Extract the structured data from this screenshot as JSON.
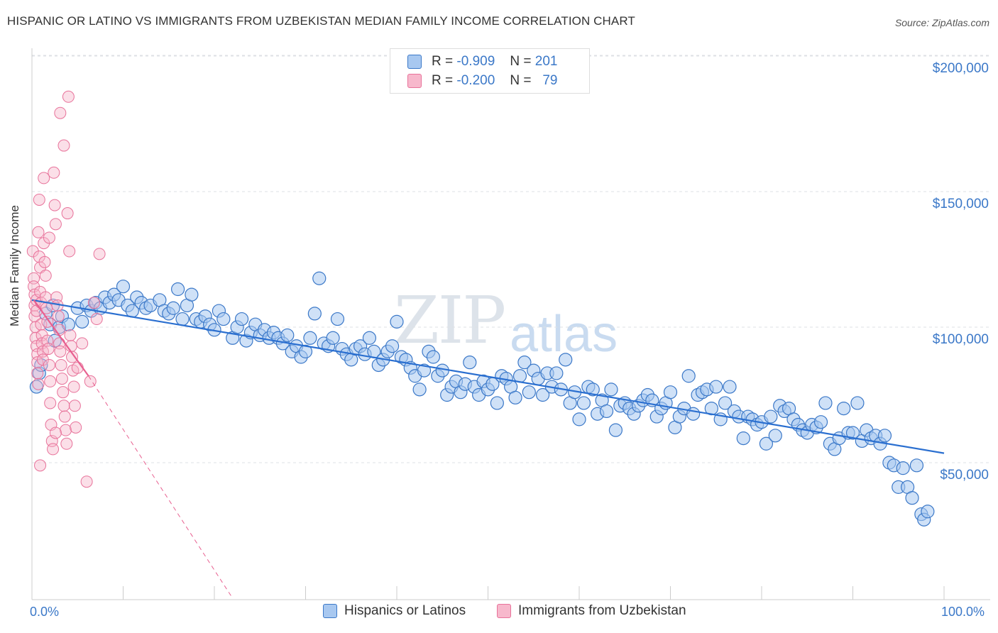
{
  "header": {
    "title": "HISPANIC OR LATINO VS IMMIGRANTS FROM UZBEKISTAN MEDIAN FAMILY INCOME CORRELATION CHART",
    "source": "Source: ZipAtlas.com"
  },
  "watermark": {
    "zip": "ZIP",
    "atlas": "atlas"
  },
  "legend": {
    "rows": [
      {
        "r_label": "R =",
        "r_value": "-0.909",
        "n_label": "N =",
        "n_value": "201",
        "color": "#a8c8f0"
      },
      {
        "r_label": "R =",
        "r_value": "-0.200",
        "n_label": "N =",
        "n_value": "79",
        "color": "#f7b8cc"
      }
    ]
  },
  "colors": {
    "blue_fill": "#a8c8f0",
    "blue_stroke": "#3b78c8",
    "blue_line": "#2a6fd0",
    "pink_fill": "#f7b8cc",
    "pink_stroke": "#e8729a",
    "pink_line": "#e86090",
    "grid": "#dde0e4",
    "axis": "#ccc"
  },
  "chart_data": {
    "type": "scatter",
    "title": "HISPANIC OR LATINO VS IMMIGRANTS FROM UZBEKISTAN MEDIAN FAMILY INCOME CORRELATION CHART",
    "xlabel": "",
    "ylabel": "Median Family Income",
    "xlim": [
      0,
      100
    ],
    "ylim": [
      0,
      205000
    ],
    "x_tick_labels": [
      "0.0%",
      "100.0%"
    ],
    "y_ticks": [
      50000,
      100000,
      150000,
      200000
    ],
    "y_tick_labels": [
      "$50,000",
      "$100,000",
      "$150,000",
      "$200,000"
    ],
    "series": [
      {
        "name": "Hispanics or Latinos",
        "trend": {
          "x": [
            0,
            100
          ],
          "y": [
            110000,
            53500
          ]
        },
        "points": [
          [
            0.5,
            78000
          ],
          [
            0.8,
            83000
          ],
          [
            1.0,
            86000
          ],
          [
            1.5,
            105000
          ],
          [
            2.0,
            101000
          ],
          [
            2.3,
            108000
          ],
          [
            2.5,
            95000
          ],
          [
            3.0,
            100000
          ],
          [
            3.3,
            104000
          ],
          [
            4.0,
            101000
          ],
          [
            5.0,
            107000
          ],
          [
            5.5,
            102000
          ],
          [
            6.0,
            108000
          ],
          [
            6.5,
            106000
          ],
          [
            7.0,
            109000
          ],
          [
            7.5,
            107000
          ],
          [
            8.0,
            111000
          ],
          [
            8.5,
            109000
          ],
          [
            9.0,
            112000
          ],
          [
            9.5,
            110000
          ],
          [
            10.0,
            115000
          ],
          [
            10.5,
            108000
          ],
          [
            11.0,
            106000
          ],
          [
            11.5,
            111000
          ],
          [
            12.0,
            109000
          ],
          [
            12.5,
            107000
          ],
          [
            13.0,
            108000
          ],
          [
            14.0,
            110000
          ],
          [
            14.5,
            106000
          ],
          [
            15.0,
            105000
          ],
          [
            15.5,
            107000
          ],
          [
            16.0,
            114000
          ],
          [
            16.5,
            103000
          ],
          [
            17.0,
            108000
          ],
          [
            17.5,
            112000
          ],
          [
            18.0,
            103000
          ],
          [
            18.5,
            102000
          ],
          [
            19.0,
            104000
          ],
          [
            19.5,
            101000
          ],
          [
            20.0,
            99000
          ],
          [
            20.5,
            106000
          ],
          [
            21.0,
            103000
          ],
          [
            22.0,
            96000
          ],
          [
            22.5,
            100000
          ],
          [
            23.0,
            103000
          ],
          [
            23.5,
            95000
          ],
          [
            24.0,
            98000
          ],
          [
            24.5,
            101000
          ],
          [
            25.0,
            97000
          ],
          [
            25.5,
            99000
          ],
          [
            26.0,
            96000
          ],
          [
            26.5,
            98000
          ],
          [
            27.0,
            96000
          ],
          [
            27.5,
            94000
          ],
          [
            28.0,
            97000
          ],
          [
            28.5,
            91000
          ],
          [
            29.0,
            93000
          ],
          [
            29.5,
            89000
          ],
          [
            30.0,
            91000
          ],
          [
            30.5,
            96000
          ],
          [
            31.0,
            105000
          ],
          [
            31.5,
            118000
          ],
          [
            32.0,
            94000
          ],
          [
            32.5,
            93000
          ],
          [
            33.0,
            96000
          ],
          [
            33.5,
            103000
          ],
          [
            34.0,
            92000
          ],
          [
            34.5,
            90000
          ],
          [
            35.0,
            88000
          ],
          [
            35.5,
            92000
          ],
          [
            36.0,
            93000
          ],
          [
            36.5,
            90000
          ],
          [
            37.0,
            96000
          ],
          [
            37.5,
            91000
          ],
          [
            38.0,
            86000
          ],
          [
            38.5,
            88000
          ],
          [
            39.0,
            91000
          ],
          [
            39.5,
            93000
          ],
          [
            40.0,
            102000
          ],
          [
            40.5,
            89000
          ],
          [
            41.0,
            88000
          ],
          [
            41.5,
            85000
          ],
          [
            42.0,
            82000
          ],
          [
            42.5,
            77000
          ],
          [
            43.0,
            84000
          ],
          [
            43.5,
            91000
          ],
          [
            44.0,
            89000
          ],
          [
            44.5,
            82000
          ],
          [
            45.0,
            84000
          ],
          [
            45.5,
            75000
          ],
          [
            46.0,
            78000
          ],
          [
            46.5,
            80000
          ],
          [
            47.0,
            76000
          ],
          [
            47.5,
            79000
          ],
          [
            48.0,
            87000
          ],
          [
            48.5,
            78000
          ],
          [
            49.0,
            75000
          ],
          [
            49.5,
            80000
          ],
          [
            50.0,
            77000
          ],
          [
            50.5,
            79000
          ],
          [
            51.0,
            72000
          ],
          [
            51.5,
            82000
          ],
          [
            52.0,
            81000
          ],
          [
            52.5,
            78000
          ],
          [
            53.0,
            74000
          ],
          [
            53.5,
            82000
          ],
          [
            54.0,
            87000
          ],
          [
            54.5,
            76000
          ],
          [
            55.0,
            84000
          ],
          [
            55.5,
            81000
          ],
          [
            56.0,
            75000
          ],
          [
            56.5,
            83000
          ],
          [
            57.0,
            78000
          ],
          [
            57.5,
            83000
          ],
          [
            58.0,
            77000
          ],
          [
            58.5,
            88000
          ],
          [
            59.0,
            72000
          ],
          [
            59.5,
            76000
          ],
          [
            60.0,
            66000
          ],
          [
            60.5,
            72000
          ],
          [
            61.0,
            78000
          ],
          [
            61.5,
            77000
          ],
          [
            62.0,
            68000
          ],
          [
            62.5,
            73000
          ],
          [
            63.0,
            69000
          ],
          [
            63.5,
            77000
          ],
          [
            64.0,
            62000
          ],
          [
            64.5,
            71000
          ],
          [
            65.0,
            72000
          ],
          [
            65.5,
            70000
          ],
          [
            66.0,
            68000
          ],
          [
            66.5,
            71000
          ],
          [
            67.0,
            73000
          ],
          [
            67.5,
            75000
          ],
          [
            68.0,
            73000
          ],
          [
            68.5,
            67000
          ],
          [
            69.0,
            70000
          ],
          [
            69.5,
            72000
          ],
          [
            70.0,
            76000
          ],
          [
            70.5,
            63000
          ],
          [
            71.0,
            67000
          ],
          [
            71.5,
            70000
          ],
          [
            72.0,
            82000
          ],
          [
            72.5,
            68000
          ],
          [
            73.0,
            75000
          ],
          [
            73.5,
            76000
          ],
          [
            74.0,
            77000
          ],
          [
            74.5,
            70000
          ],
          [
            75.0,
            78000
          ],
          [
            75.5,
            66000
          ],
          [
            76.0,
            72000
          ],
          [
            76.5,
            78000
          ],
          [
            77.0,
            69000
          ],
          [
            77.5,
            67000
          ],
          [
            78.0,
            59000
          ],
          [
            78.5,
            67000
          ],
          [
            79.0,
            66000
          ],
          [
            79.5,
            64000
          ],
          [
            80.0,
            65000
          ],
          [
            80.5,
            57000
          ],
          [
            81.0,
            67000
          ],
          [
            81.5,
            60000
          ],
          [
            82.0,
            71000
          ],
          [
            82.5,
            69000
          ],
          [
            83.0,
            70000
          ],
          [
            83.5,
            66000
          ],
          [
            84.0,
            64000
          ],
          [
            84.5,
            62000
          ],
          [
            85.0,
            61000
          ],
          [
            85.5,
            64000
          ],
          [
            86.0,
            63000
          ],
          [
            86.5,
            65000
          ],
          [
            87.0,
            72000
          ],
          [
            87.5,
            57000
          ],
          [
            88.0,
            55000
          ],
          [
            88.5,
            59000
          ],
          [
            89.0,
            70000
          ],
          [
            89.5,
            61000
          ],
          [
            90.0,
            61000
          ],
          [
            90.5,
            72000
          ],
          [
            91.0,
            58000
          ],
          [
            91.5,
            62000
          ],
          [
            92.0,
            59000
          ],
          [
            92.5,
            60000
          ],
          [
            93.0,
            57000
          ],
          [
            93.5,
            60000
          ],
          [
            94.0,
            50000
          ],
          [
            94.5,
            49000
          ],
          [
            95.0,
            41000
          ],
          [
            95.5,
            48000
          ],
          [
            96.0,
            41000
          ],
          [
            96.5,
            37000
          ],
          [
            97.0,
            49000
          ],
          [
            97.5,
            31000
          ],
          [
            97.8,
            29000
          ],
          [
            98.2,
            32000
          ]
        ]
      },
      {
        "name": "Immigrants from Uzbekistan",
        "trend": {
          "x": [
            0.2,
            6.2
          ],
          "y": [
            110000,
            82000
          ],
          "dashed_to": {
            "x": 22,
            "y": 0
          }
        },
        "points": [
          [
            0.1,
            128000
          ],
          [
            0.2,
            118000
          ],
          [
            0.2,
            115000
          ],
          [
            0.3,
            112000
          ],
          [
            0.3,
            108000
          ],
          [
            0.3,
            104000
          ],
          [
            0.4,
            100000
          ],
          [
            0.4,
            96000
          ],
          [
            0.5,
            110000
          ],
          [
            0.5,
            106000
          ],
          [
            0.5,
            93000
          ],
          [
            0.6,
            90000
          ],
          [
            0.6,
            87000
          ],
          [
            0.6,
            83000
          ],
          [
            0.7,
            79000
          ],
          [
            0.7,
            135000
          ],
          [
            0.8,
            147000
          ],
          [
            0.8,
            126000
          ],
          [
            0.9,
            122000
          ],
          [
            0.9,
            113000
          ],
          [
            1.0,
            109000
          ],
          [
            1.0,
            101000
          ],
          [
            1.1,
            97000
          ],
          [
            1.1,
            94000
          ],
          [
            1.2,
            91000
          ],
          [
            1.2,
            88000
          ],
          [
            1.3,
            155000
          ],
          [
            1.3,
            131000
          ],
          [
            1.4,
            124000
          ],
          [
            1.5,
            119000
          ],
          [
            1.5,
            111000
          ],
          [
            1.6,
            107000
          ],
          [
            1.7,
            102000
          ],
          [
            1.7,
            95000
          ],
          [
            1.8,
            92000
          ],
          [
            1.9,
            86000
          ],
          [
            2.0,
            80000
          ],
          [
            2.0,
            72000
          ],
          [
            2.1,
            64000
          ],
          [
            2.2,
            58000
          ],
          [
            2.3,
            55000
          ],
          [
            2.4,
            157000
          ],
          [
            2.5,
            145000
          ],
          [
            2.6,
            138000
          ],
          [
            2.7,
            111000
          ],
          [
            2.8,
            108000
          ],
          [
            2.9,
            104000
          ],
          [
            3.0,
            99000
          ],
          [
            3.0,
            94000
          ],
          [
            3.1,
            91000
          ],
          [
            3.2,
            86000
          ],
          [
            3.3,
            81000
          ],
          [
            3.4,
            76000
          ],
          [
            3.5,
            71000
          ],
          [
            3.6,
            67000
          ],
          [
            3.7,
            62000
          ],
          [
            3.8,
            57000
          ],
          [
            3.9,
            142000
          ],
          [
            4.0,
            185000
          ],
          [
            4.1,
            128000
          ],
          [
            4.2,
            97000
          ],
          [
            4.3,
            93000
          ],
          [
            4.4,
            89000
          ],
          [
            4.5,
            84000
          ],
          [
            4.6,
            78000
          ],
          [
            4.7,
            71000
          ],
          [
            4.8,
            63000
          ],
          [
            3.5,
            167000
          ],
          [
            3.1,
            179000
          ],
          [
            1.9,
            133000
          ],
          [
            0.9,
            49000
          ],
          [
            6.0,
            43000
          ],
          [
            6.4,
            80000
          ],
          [
            7.1,
            103000
          ],
          [
            7.4,
            127000
          ],
          [
            6.8,
            109000
          ],
          [
            5.5,
            94000
          ],
          [
            5.0,
            85000
          ],
          [
            2.6,
            61000
          ]
        ]
      }
    ]
  },
  "bottom_legend": {
    "items": [
      {
        "label": "Hispanics or Latinos",
        "color": "#a8c8f0"
      },
      {
        "label": "Immigrants from Uzbekistan",
        "color": "#f7b8cc"
      }
    ]
  }
}
